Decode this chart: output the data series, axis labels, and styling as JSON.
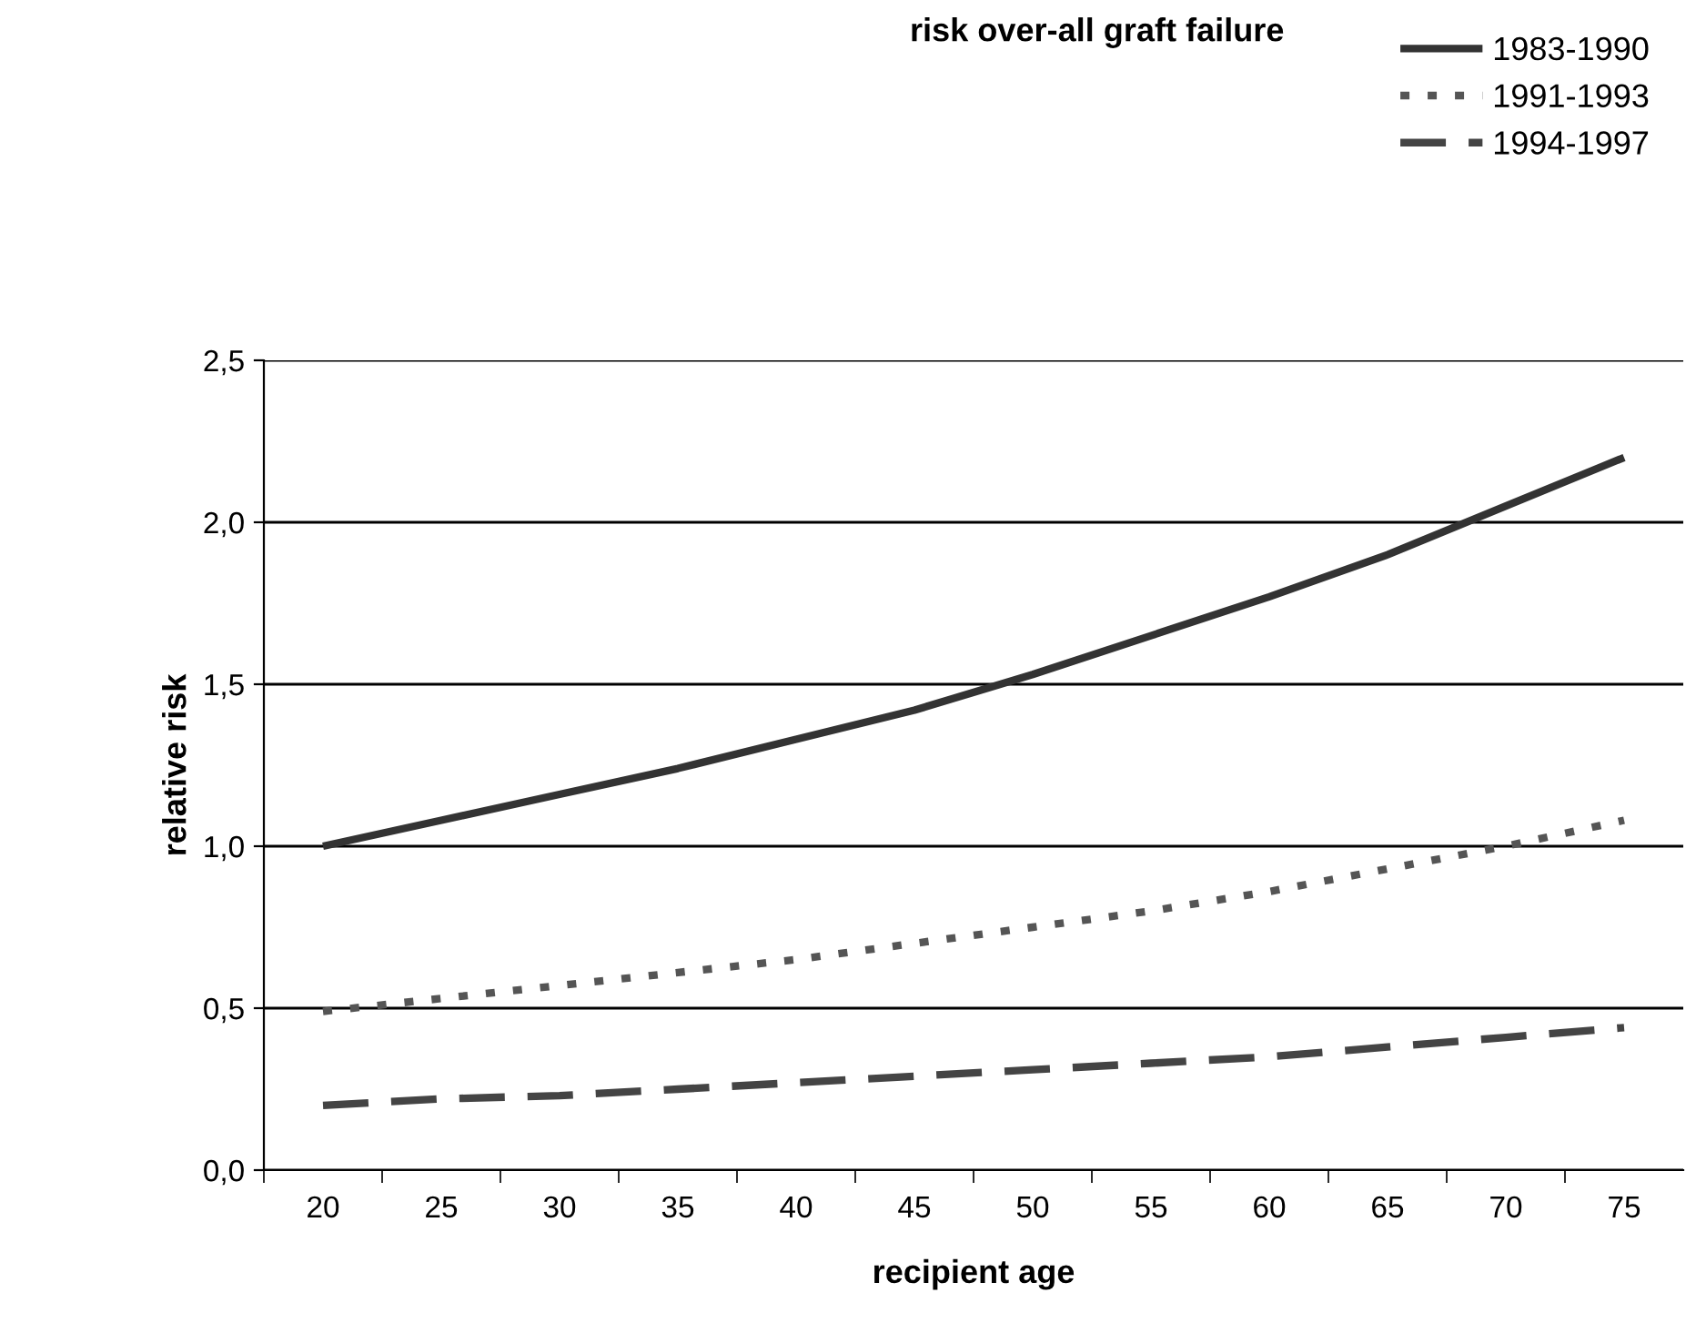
{
  "chart_data": {
    "type": "line",
    "title": "risk over-all graft failure",
    "xlabel": "recipient age",
    "ylabel": "relative risk",
    "categories": [
      "20",
      "25",
      "30",
      "35",
      "40",
      "45",
      "50",
      "55",
      "60",
      "65",
      "70",
      "75"
    ],
    "series": [
      {
        "name": "1983-1990",
        "color": "#333333",
        "line_style": "solid",
        "values": [
          1.0,
          1.08,
          1.16,
          1.24,
          1.33,
          1.42,
          1.53,
          1.65,
          1.77,
          1.9,
          2.05,
          2.2
        ]
      },
      {
        "name": "1991-1993",
        "color": "#555555",
        "line_style": "dotted",
        "values": [
          0.49,
          0.53,
          0.57,
          0.61,
          0.65,
          0.7,
          0.75,
          0.8,
          0.86,
          0.93,
          1.0,
          1.08
        ]
      },
      {
        "name": "1994-1997",
        "color": "#444444",
        "line_style": "dashed",
        "values": [
          0.2,
          0.22,
          0.23,
          0.25,
          0.27,
          0.29,
          0.31,
          0.33,
          0.35,
          0.38,
          0.41,
          0.44
        ]
      }
    ],
    "ylim": [
      0,
      2.5
    ],
    "yticks": [
      {
        "value": 0,
        "label": "0,0"
      },
      {
        "value": 0.5,
        "label": "0,5"
      },
      {
        "value": 1,
        "label": "1,0"
      },
      {
        "value": 1.5,
        "label": "1,5"
      },
      {
        "value": 2,
        "label": "2,0"
      },
      {
        "value": 2.5,
        "label": "2,5"
      }
    ],
    "grid": "y",
    "legend": "top right",
    "marker": "none"
  }
}
